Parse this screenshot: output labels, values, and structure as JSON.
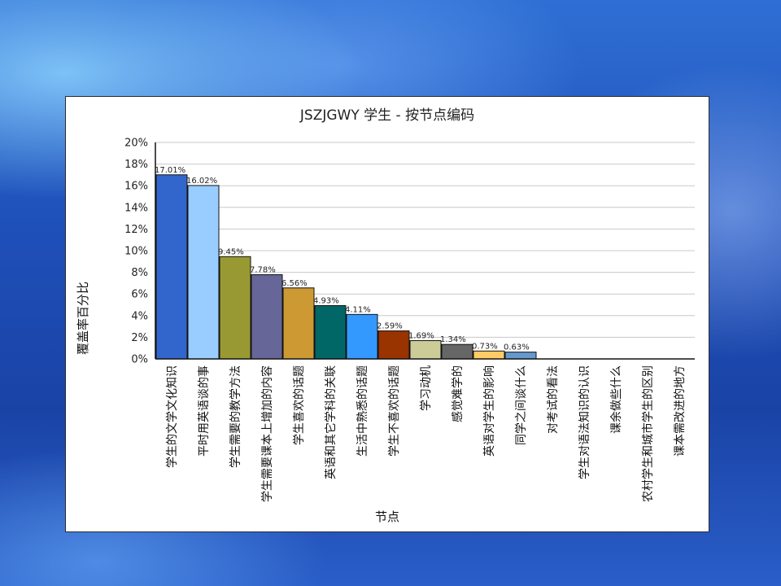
{
  "chart_data": {
    "type": "bar",
    "title": "JSZJGWY 学生 - 按节点编码",
    "xlabel": "节点",
    "ylabel": "覆盖率百分比",
    "ylim": [
      0,
      20
    ],
    "yticks": [
      "0%",
      "2%",
      "4%",
      "6%",
      "8%",
      "10%",
      "12%",
      "14%",
      "16%",
      "18%",
      "20%"
    ],
    "grid": true,
    "categories": [
      "学生的文学文化知识",
      "平时用英语谈的事",
      "学生需要的教学方法",
      "学生需要课本上增加的内容",
      "学生喜欢的话题",
      "英语和其它学科的关联",
      "生活中熟悉的话题",
      "学生不喜欢的话题",
      "学习动机",
      "感觉难学的",
      "英语对学生的影响",
      "同学之间谈什么",
      "对考试的看法",
      "学生对语法知识的认识",
      "课余做些什么",
      "农村学生和城市学生的区别",
      "课本需改进的地方"
    ],
    "values": [
      17.01,
      16.02,
      9.45,
      7.78,
      6.56,
      4.93,
      4.11,
      2.59,
      1.69,
      1.34,
      0.73,
      0.63,
      0,
      0,
      0,
      0,
      0
    ],
    "data_labels": [
      "17.01%",
      "16.02%",
      "9.45%",
      "7.78%",
      "6.56%",
      "4.93%",
      "4.11%",
      "2.59%",
      "1.69%",
      "1.34%",
      "0.73%",
      "0.63%",
      "",
      "",
      "",
      "",
      ""
    ],
    "colors": [
      "#3366cc",
      "#99ccff",
      "#999933",
      "#666699",
      "#cc9933",
      "#006666",
      "#3399ff",
      "#993300",
      "#cccc99",
      "#666666",
      "#ffcc66",
      "#6699cc",
      "#cccccc",
      "#cccccc",
      "#cccccc",
      "#cccccc",
      "#cccccc"
    ]
  }
}
